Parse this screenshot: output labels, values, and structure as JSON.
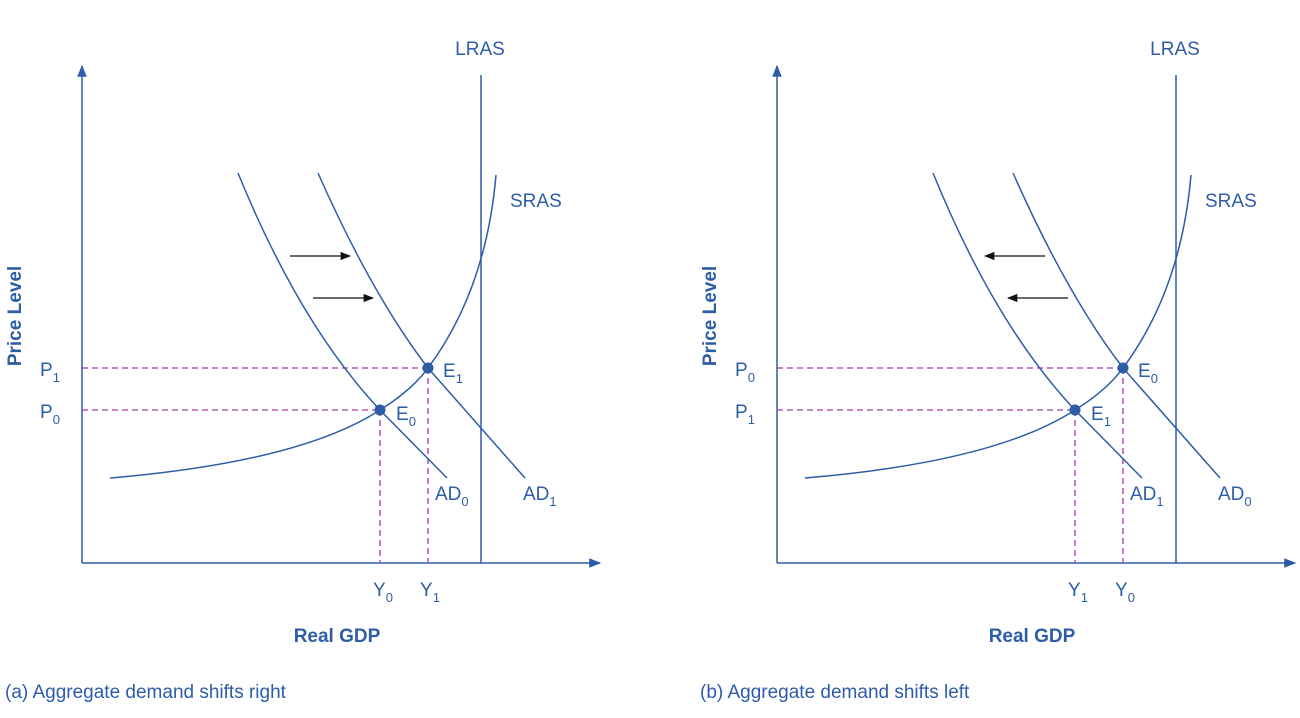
{
  "panels": [
    {
      "caption": "(a) Aggregate demand shifts right",
      "y_axis_label": "Price Level",
      "x_axis_label": "Real GDP",
      "lras_label": "LRAS",
      "sras_label": "SRAS",
      "ad_inner_label": {
        "text": "AD",
        "subscript": "0"
      },
      "ad_outer_label": {
        "text": "AD",
        "subscript": "1"
      },
      "upper_price": {
        "text": "P",
        "subscript": "1"
      },
      "lower_price": {
        "text": "P",
        "subscript": "0"
      },
      "upper_point": {
        "text": "E",
        "subscript": "1"
      },
      "lower_point": {
        "text": "E",
        "subscript": "0"
      },
      "left_gdp": {
        "text": "Y",
        "subscript": "0"
      },
      "right_gdp": {
        "text": "Y",
        "subscript": "1"
      },
      "shift": "right"
    },
    {
      "caption": "(b) Aggregate demand shifts left",
      "y_axis_label": "Price Level",
      "x_axis_label": "Real GDP",
      "lras_label": "LRAS",
      "sras_label": "SRAS",
      "ad_inner_label": {
        "text": "AD",
        "subscript": "1"
      },
      "ad_outer_label": {
        "text": "AD",
        "subscript": "0"
      },
      "upper_price": {
        "text": "P",
        "subscript": "0"
      },
      "lower_price": {
        "text": "P",
        "subscript": "1"
      },
      "upper_point": {
        "text": "E",
        "subscript": "0"
      },
      "lower_point": {
        "text": "E",
        "subscript": "1"
      },
      "left_gdp": {
        "text": "Y",
        "subscript": "1"
      },
      "right_gdp": {
        "text": "Y",
        "subscript": "0"
      },
      "shift": "left"
    }
  ]
}
